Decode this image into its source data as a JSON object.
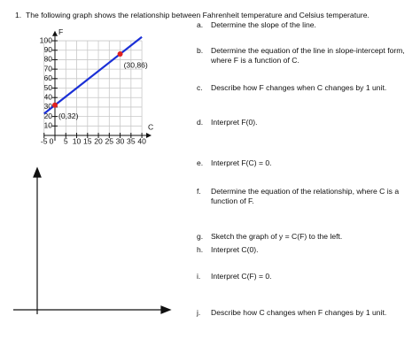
{
  "question": {
    "number": "1.",
    "text": "The following graph shows the relationship between Fahrenheit temperature and Celsius temperature."
  },
  "chart_data": {
    "type": "line",
    "x_label": "C",
    "y_label": "F",
    "xlim": [
      -5,
      42
    ],
    "ylim": [
      0,
      105
    ],
    "xticks": [
      -5,
      0,
      5,
      10,
      15,
      20,
      25,
      30,
      35,
      40
    ],
    "yticks": [
      10,
      20,
      30,
      40,
      50,
      60,
      70,
      80,
      90,
      100
    ],
    "grid": true,
    "series": [
      {
        "color": "#1a2fd6",
        "x": [
          -5,
          40
        ],
        "values": [
          23,
          104
        ]
      }
    ],
    "points": {
      "color": "#e02020",
      "x": [
        0,
        30
      ],
      "values": [
        32,
        86
      ],
      "value_labels": [
        "(0,32)",
        "(30,86)"
      ]
    }
  },
  "parts": [
    {
      "letter": "a.",
      "lines": [
        "Determine the slope of the line."
      ]
    },
    {
      "letter": "b.",
      "lines": [
        "Determine the equation of the line in slope-intercept form,",
        "where F is a function of C."
      ]
    },
    {
      "letter": "c.",
      "lines": [
        "Describe how F changes when C changes by 1 unit."
      ]
    },
    {
      "letter": "d.",
      "lines": [
        "Interpret F(0)."
      ]
    },
    {
      "letter": "e.",
      "lines": [
        "Interpret F(C) = 0."
      ]
    },
    {
      "letter": "f.",
      "lines": [
        "Determine the equation of the relationship, where C is a",
        "function of F."
      ]
    },
    {
      "letter": "g.",
      "lines": [
        "Sketch the graph of y = C(F) to the left."
      ]
    },
    {
      "letter": "h.",
      "lines": [
        "Interpret C(0)."
      ]
    },
    {
      "letter": "i.",
      "lines": [
        "Interpret C(F) = 0."
      ]
    },
    {
      "letter": "j.",
      "lines": [
        "Describe how C changes when F changes by 1 unit."
      ]
    }
  ]
}
